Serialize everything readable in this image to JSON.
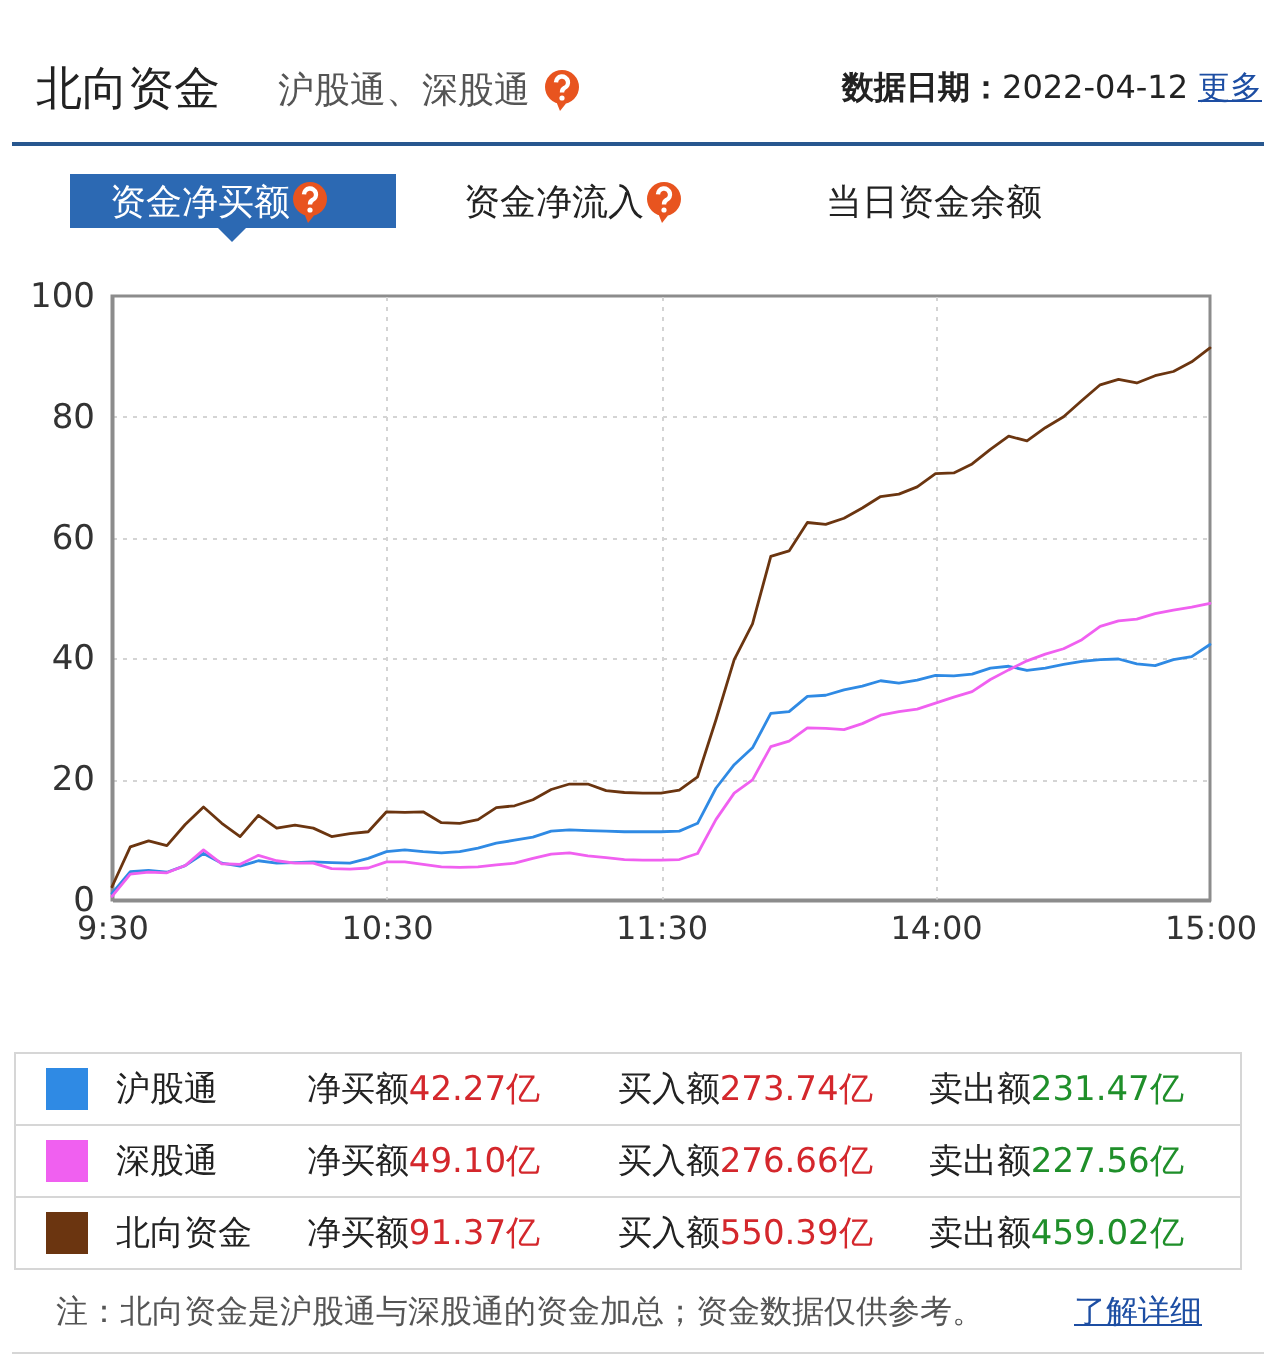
{
  "chart_data": {
    "type": "line",
    "title": "北向资金",
    "subtitle": "沪股通、深股通",
    "categories": [
      "9:30",
      null,
      null,
      null,
      null,
      null,
      null,
      null,
      null,
      null,
      null,
      null,
      null,
      null,
      null,
      "10:30",
      null,
      null,
      null,
      null,
      null,
      null,
      null,
      null,
      null,
      null,
      null,
      null,
      null,
      null,
      "11:30",
      null,
      null,
      null,
      null,
      null,
      null,
      null,
      null,
      null,
      null,
      null,
      null,
      null,
      null,
      "14:00",
      null,
      null,
      null,
      null,
      null,
      null,
      null,
      null,
      null,
      null,
      null,
      null,
      null,
      null,
      "15:00"
    ],
    "ylim": [
      0,
      100
    ],
    "yticks": [
      0,
      20,
      40,
      60,
      80,
      100
    ],
    "grid": true,
    "legend": "bottom",
    "series": [
      {
        "name": "沪股通",
        "color": "#2f8ae4",
        "values": [
          1.1,
          4.7,
          4.9,
          4.6,
          5.7,
          7.7,
          6.1,
          5.6,
          6.5,
          6.1,
          6.2,
          6.3,
          6.2,
          6.1,
          6.9,
          8.0,
          8.3,
          8.0,
          7.8,
          8.0,
          8.6,
          9.4,
          9.9,
          10.4,
          11.4,
          11.6,
          11.5,
          11.4,
          11.3,
          11.3,
          11.3,
          11.4,
          12.7,
          18.5,
          22.4,
          25.2,
          30.9,
          31.2,
          33.7,
          33.9,
          34.8,
          35.4,
          36.3,
          35.9,
          36.4,
          37.2,
          37.1,
          37.4,
          38.4,
          38.7,
          38.0,
          38.4,
          39.0,
          39.5,
          39.8,
          39.9,
          39.1,
          38.8,
          39.8,
          40.3,
          42.3
        ]
      },
      {
        "name": "深股通",
        "color": "#f060f0",
        "values": [
          0.6,
          4.3,
          4.6,
          4.5,
          5.7,
          8.3,
          6.0,
          5.9,
          7.4,
          6.5,
          6.1,
          6.1,
          5.2,
          5.1,
          5.3,
          6.3,
          6.3,
          5.9,
          5.5,
          5.4,
          5.5,
          5.8,
          6.1,
          6.9,
          7.6,
          7.8,
          7.3,
          7.0,
          6.7,
          6.6,
          6.6,
          6.7,
          7.7,
          13.3,
          17.7,
          19.9,
          25.4,
          26.3,
          28.5,
          28.4,
          28.2,
          29.2,
          30.6,
          31.2,
          31.6,
          32.6,
          33.6,
          34.5,
          36.5,
          38.1,
          39.6,
          40.7,
          41.6,
          43.1,
          45.3,
          46.2,
          46.5,
          47.4,
          48.0,
          48.5,
          49.1
        ]
      },
      {
        "name": "北向资金",
        "color": "#6b3510",
        "values": [
          2.2,
          8.8,
          9.8,
          9.0,
          12.5,
          15.4,
          12.7,
          10.5,
          14.0,
          11.9,
          12.4,
          11.9,
          10.5,
          11.0,
          11.3,
          14.6,
          14.5,
          14.6,
          12.8,
          12.7,
          13.3,
          15.3,
          15.6,
          16.6,
          18.3,
          19.2,
          19.2,
          18.1,
          17.8,
          17.7,
          17.7,
          18.2,
          20.4,
          29.8,
          39.8,
          45.7,
          56.9,
          57.8,
          62.5,
          62.2,
          63.2,
          64.9,
          66.8,
          67.2,
          68.4,
          70.6,
          70.7,
          72.2,
          74.6,
          76.8,
          76.0,
          78.2,
          80.0,
          82.7,
          85.3,
          86.2,
          85.6,
          86.8,
          87.5,
          89.1,
          91.4
        ]
      }
    ],
    "annotations": [
      "数据日期：2022-04-12",
      "更多",
      "资金净买额",
      "资金净流入",
      "当日资金余额",
      "净买额42.27亿",
      "买入额273.74亿",
      "卖出额231.47亿",
      "净买额49.10亿",
      "买入额276.66亿",
      "卖出额227.56亿",
      "净买额91.37亿",
      "买入额550.39亿",
      "卖出额459.02亿",
      "注：北向资金是沪股通与深股通的资金加总；资金数据仅供参考。",
      "了解详细"
    ]
  }
}
